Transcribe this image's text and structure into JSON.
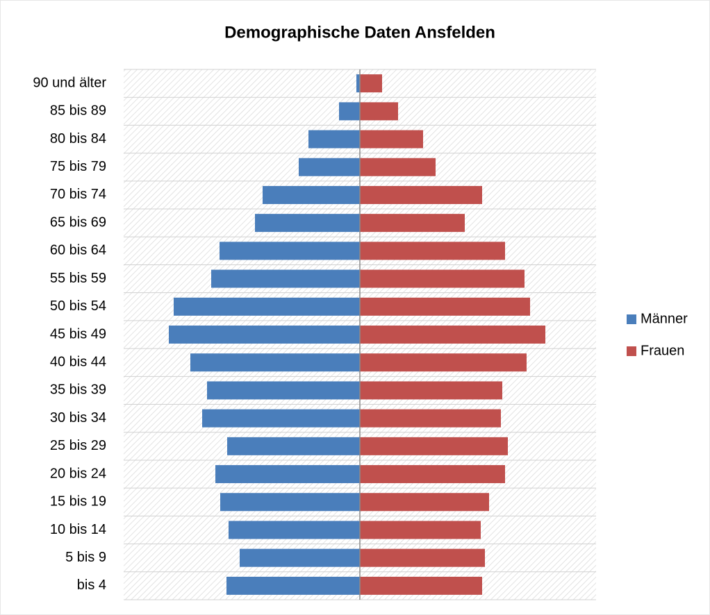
{
  "chart_data": {
    "type": "pyramid",
    "title": "Demographische Daten Ansfelden",
    "categories": [
      "90 und älter",
      "85 bis 89",
      "80 bis 84",
      "75 bis 79",
      "70 bis 74",
      "65 bis 69",
      "60 bis 64",
      "55 bis 59",
      "50 bis 54",
      "45 bis 49",
      "40 bis 44",
      "35 bis 39",
      "30 bis 34",
      "25 bis 29",
      "20 bis 24",
      "15 bis 19",
      "10 bis 14",
      "5 bis 9",
      "bis 4"
    ],
    "series": [
      {
        "name": "Männer",
        "color": "#4a7ebb",
        "values": [
          5,
          30,
          74,
          88,
          140,
          151,
          202,
          214,
          268,
          275,
          244,
          220,
          227,
          191,
          208,
          201,
          189,
          173,
          192
        ]
      },
      {
        "name": "Frauen",
        "color": "#c0504d",
        "values": [
          32,
          55,
          91,
          109,
          176,
          151,
          209,
          237,
          245,
          267,
          240,
          205,
          203,
          213,
          209,
          186,
          174,
          180,
          176
        ]
      }
    ],
    "legend": "right",
    "grid": true
  }
}
